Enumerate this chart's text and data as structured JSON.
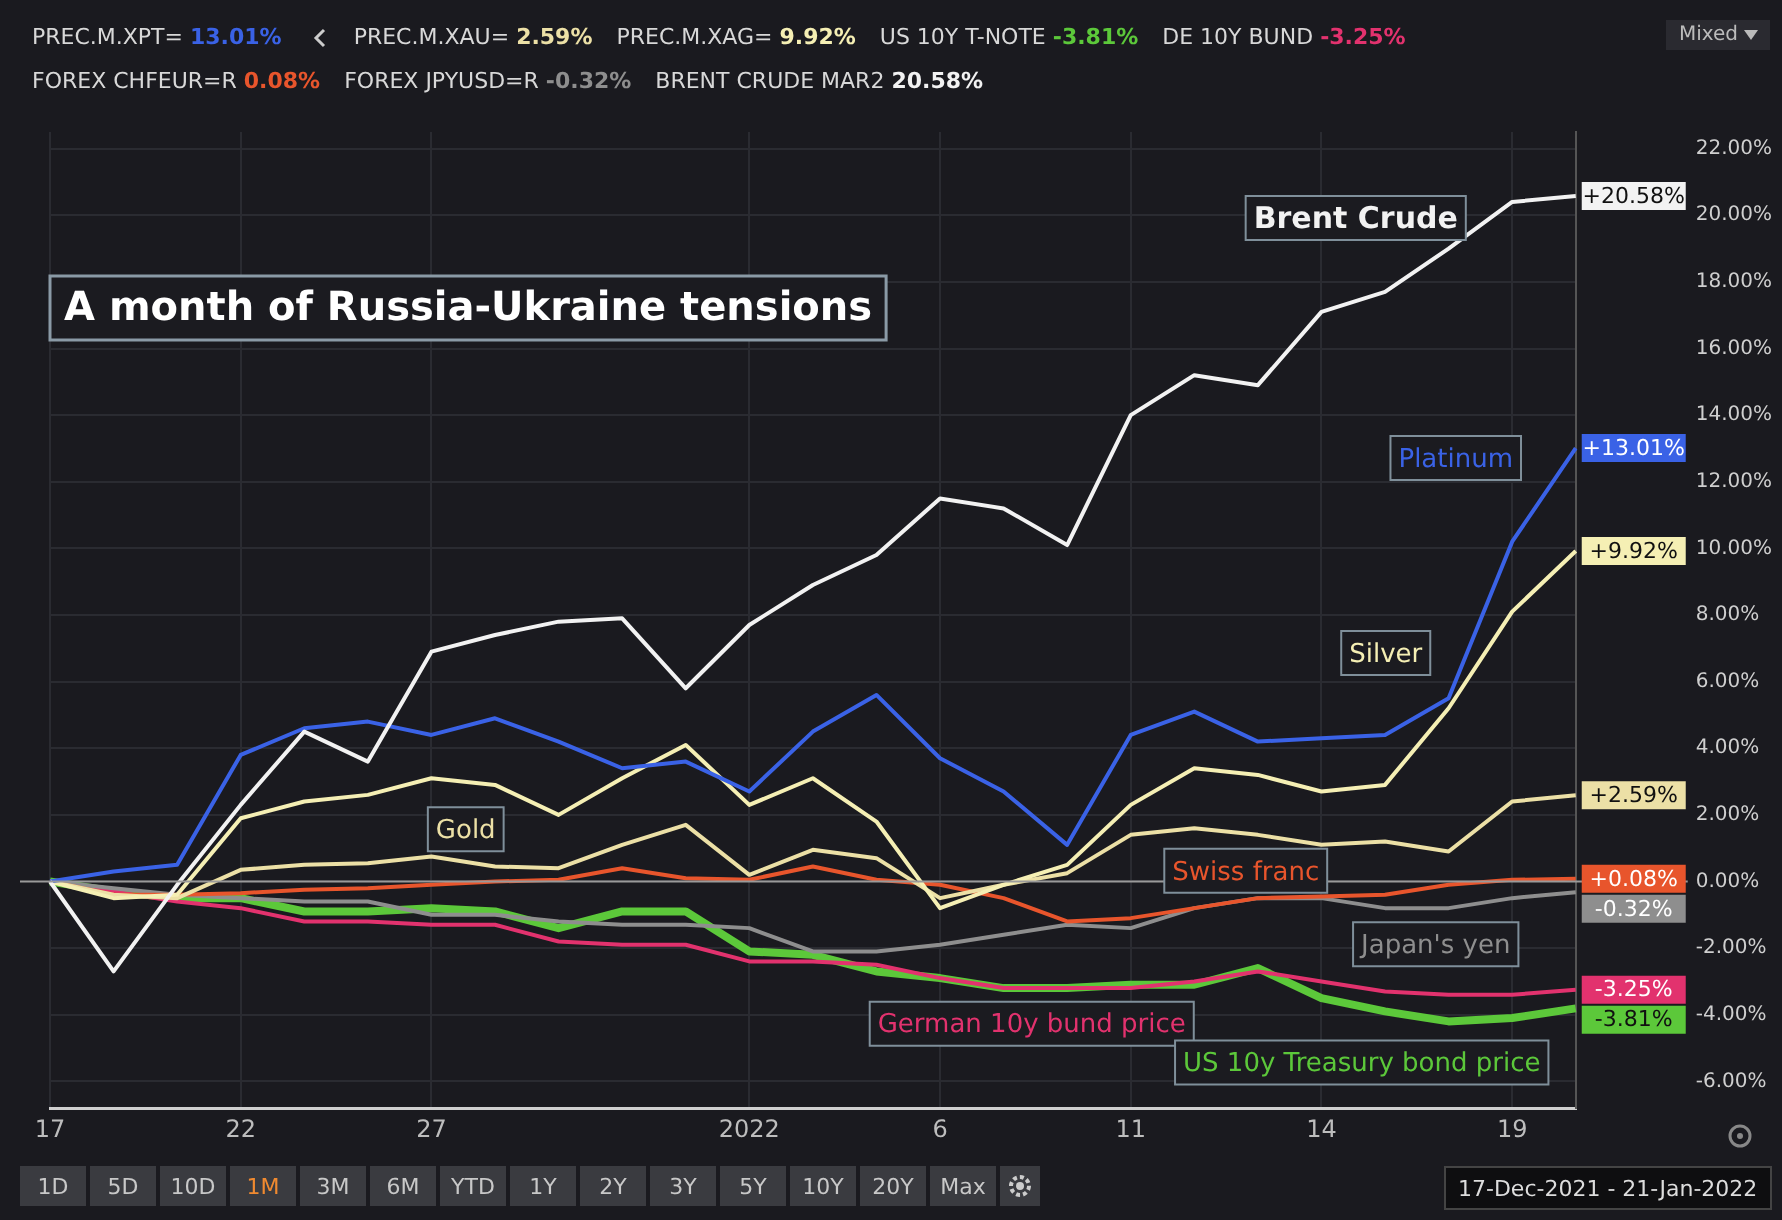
{
  "chart_data": {
    "type": "line",
    "title": "A month of Russia-Ukraine tensions",
    "categories": [
      "17",
      null,
      null,
      "22",
      null,
      null,
      "27",
      null,
      null,
      null,
      null,
      "2022",
      null,
      null,
      "6",
      null,
      null,
      "11",
      null,
      null,
      "14",
      null,
      null,
      "19",
      null
    ],
    "series": [
      {
        "name": "Brent Crude",
        "color": "#f2f2f2",
        "values": [
          0,
          -2.7,
          -0.1,
          2.3,
          4.5,
          3.6,
          6.9,
          7.4,
          7.8,
          7.9,
          5.8,
          7.7,
          8.9,
          9.8,
          11.5,
          11.2,
          10.1,
          14.0,
          15.2,
          14.9,
          17.1,
          17.7,
          19.0,
          20.4,
          20.58
        ],
        "value_labels": [
          null,
          null,
          null,
          null,
          null,
          null,
          null,
          null,
          null,
          null,
          null,
          null,
          null,
          null,
          null,
          null,
          null,
          null,
          null,
          null,
          null,
          null,
          null,
          null,
          "+20.58%"
        ]
      },
      {
        "name": "Platinum",
        "color": "#3a62e6",
        "values": [
          0,
          0.3,
          0.5,
          3.8,
          4.6,
          4.8,
          4.4,
          4.9,
          4.2,
          3.4,
          3.6,
          2.7,
          4.5,
          5.6,
          3.7,
          2.7,
          1.1,
          4.4,
          5.1,
          4.2,
          4.3,
          4.4,
          5.5,
          10.2,
          13.01
        ],
        "value_labels": [
          null,
          null,
          null,
          null,
          null,
          null,
          null,
          null,
          null,
          null,
          null,
          null,
          null,
          null,
          null,
          null,
          null,
          null,
          null,
          null,
          null,
          null,
          null,
          null,
          "+13.01%"
        ]
      },
      {
        "name": "Silver",
        "color": "#f5efb4",
        "values": [
          0,
          -0.5,
          -0.4,
          1.9,
          2.4,
          2.6,
          3.1,
          2.9,
          2.0,
          3.1,
          4.1,
          2.3,
          3.1,
          1.8,
          -0.8,
          -0.1,
          0.5,
          2.3,
          3.4,
          3.2,
          2.7,
          2.9,
          5.2,
          8.1,
          9.92
        ],
        "value_labels": [
          null,
          null,
          null,
          null,
          null,
          null,
          null,
          null,
          null,
          null,
          null,
          null,
          null,
          null,
          null,
          null,
          null,
          null,
          null,
          null,
          null,
          null,
          null,
          null,
          "+9.92%"
        ]
      },
      {
        "name": "Gold",
        "color": "#ece0a6",
        "values": [
          0,
          -0.4,
          -0.5,
          0.35,
          0.5,
          0.55,
          0.75,
          0.45,
          0.4,
          1.1,
          1.7,
          0.2,
          0.95,
          0.7,
          -0.5,
          -0.1,
          0.25,
          1.4,
          1.6,
          1.4,
          1.1,
          1.2,
          0.9,
          2.4,
          2.59
        ],
        "value_labels": [
          null,
          null,
          null,
          null,
          null,
          null,
          null,
          null,
          null,
          null,
          null,
          null,
          null,
          null,
          null,
          null,
          null,
          null,
          null,
          null,
          null,
          null,
          null,
          null,
          "+2.59%"
        ]
      },
      {
        "name": "Swiss franc",
        "color": "#e8552c",
        "values": [
          0,
          -0.4,
          -0.4,
          -0.35,
          -0.25,
          -0.2,
          -0.1,
          0,
          0.05,
          0.4,
          0.1,
          0.05,
          0.45,
          0.05,
          -0.1,
          -0.5,
          -1.2,
          -1.1,
          -0.8,
          -0.5,
          -0.45,
          -0.4,
          -0.1,
          0.05,
          0.08
        ],
        "value_labels": [
          null,
          null,
          null,
          null,
          null,
          null,
          null,
          null,
          null,
          null,
          null,
          null,
          null,
          null,
          null,
          null,
          null,
          null,
          null,
          null,
          null,
          null,
          null,
          null,
          "+0.08%"
        ]
      },
      {
        "name": "Japan's yen",
        "color": "#8e8e8e",
        "values": [
          0,
          -0.2,
          -0.4,
          -0.5,
          -0.6,
          -0.6,
          -1.0,
          -1.0,
          -1.2,
          -1.3,
          -1.3,
          -1.4,
          -2.1,
          -2.1,
          -1.9,
          -1.6,
          -1.3,
          -1.4,
          -0.8,
          -0.5,
          -0.5,
          -0.8,
          -0.8,
          -0.5,
          -0.32
        ],
        "value_labels": [
          null,
          null,
          null,
          null,
          null,
          null,
          null,
          null,
          null,
          null,
          null,
          null,
          null,
          null,
          null,
          null,
          null,
          null,
          null,
          null,
          null,
          null,
          null,
          null,
          "-0.32%"
        ]
      },
      {
        "name": "German 10y bund price",
        "color": "#e2326e",
        "values": [
          0,
          -0.3,
          -0.6,
          -0.8,
          -1.2,
          -1.2,
          -1.3,
          -1.3,
          -1.8,
          -1.9,
          -1.9,
          -2.4,
          -2.4,
          -2.5,
          -2.9,
          -3.2,
          -3.2,
          -3.2,
          -3.0,
          -2.7,
          -3.0,
          -3.3,
          -3.4,
          -3.4,
          -3.25
        ],
        "value_labels": [
          null,
          null,
          null,
          null,
          null,
          null,
          null,
          null,
          null,
          null,
          null,
          null,
          null,
          null,
          null,
          null,
          null,
          null,
          null,
          null,
          null,
          null,
          null,
          null,
          "-3.25%"
        ]
      },
      {
        "name": "US 10y Treasury bond price",
        "color": "#5cc83a",
        "values": [
          0,
          -0.3,
          -0.5,
          -0.5,
          -0.9,
          -0.9,
          -0.8,
          -0.9,
          -1.4,
          -0.9,
          -0.9,
          -2.1,
          -2.2,
          -2.7,
          -2.9,
          -3.2,
          -3.2,
          -3.1,
          -3.1,
          -2.6,
          -3.5,
          -3.9,
          -4.2,
          -4.1,
          -3.81
        ],
        "value_labels": [
          null,
          null,
          null,
          null,
          null,
          null,
          null,
          null,
          null,
          null,
          null,
          null,
          null,
          null,
          null,
          null,
          null,
          null,
          null,
          null,
          null,
          null,
          null,
          null,
          "-3.81%"
        ]
      }
    ],
    "ylim": [
      -6.8,
      22.5
    ],
    "yticks": [
      {
        "value": -6,
        "label": "-6.00%"
      },
      {
        "value": -4,
        "label": "-4.00%"
      },
      {
        "value": -2,
        "label": "-2.00%"
      },
      {
        "value": 0,
        "label": "0.00%"
      },
      {
        "value": 2,
        "label": "2.00%"
      },
      {
        "value": 4,
        "label": "4.00%"
      },
      {
        "value": 6,
        "label": "6.00%"
      },
      {
        "value": 8,
        "label": "8.00%"
      },
      {
        "value": 10,
        "label": "10.00%"
      },
      {
        "value": 12,
        "label": "12.00%"
      },
      {
        "value": 14,
        "label": "14.00%"
      },
      {
        "value": 16,
        "label": "16.00%"
      },
      {
        "value": 18,
        "label": "18.00%"
      },
      {
        "value": 20,
        "label": "20.00%"
      },
      {
        "value": 22,
        "label": "22.00%"
      }
    ],
    "ref_lines": [
      {
        "axis": "y",
        "value": 0,
        "color": "#9a9a9a"
      }
    ],
    "grid": true,
    "legend": false,
    "marker": "none",
    "line_style": "solid",
    "annotations": [
      "PREC.M.XPT= 13.01%",
      "PREC.M.XAU= 2.59%",
      "PREC.M.XAG= 9.92%",
      "US 10Y T-NOTE -3.81%",
      "DE 10Y BUND -3.25%",
      "FOREX CHFEUR=R 0.08%",
      "FOREX JPYUSD=R -0.32%",
      "BRENT CRUDE MAR2 20.58%",
      "Mixed",
      "1D",
      "5D",
      "10D",
      "1M",
      "3M",
      "6M",
      "YTD",
      "1Y",
      "2Y",
      "3Y",
      "5Y",
      "10Y",
      "20Y",
      "Max",
      "17-Dec-2021 - 21-Jan-2022"
    ]
  }
}
